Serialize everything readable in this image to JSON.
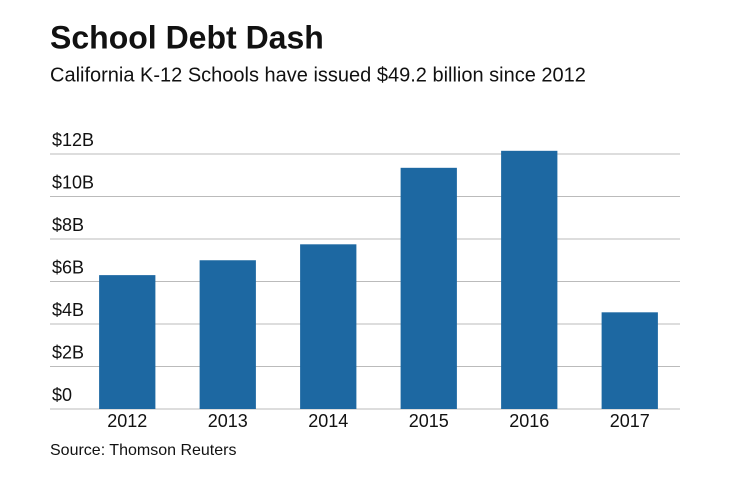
{
  "chart_data": {
    "type": "bar",
    "title": "School Debt Dash",
    "subtitle": "California K-12 Schools have issued $49.2 billion since 2012",
    "source": "Source: Thomson Reuters",
    "categories": [
      "2012",
      "2013",
      "2014",
      "2015",
      "2016",
      "2017"
    ],
    "values": [
      6.3,
      7.0,
      7.75,
      11.35,
      12.15,
      4.55
    ],
    "color": "#1d68a2",
    "ylim": [
      0,
      12
    ],
    "yticks": [
      {
        "value": 0,
        "label": "$0"
      },
      {
        "value": 2,
        "label": "$2B"
      },
      {
        "value": 4,
        "label": "$4B"
      },
      {
        "value": 6,
        "label": "$6B"
      },
      {
        "value": 8,
        "label": "$8B"
      },
      {
        "value": 10,
        "label": "$10B"
      },
      {
        "value": 12,
        "label": "$12B"
      }
    ],
    "grid": true
  }
}
